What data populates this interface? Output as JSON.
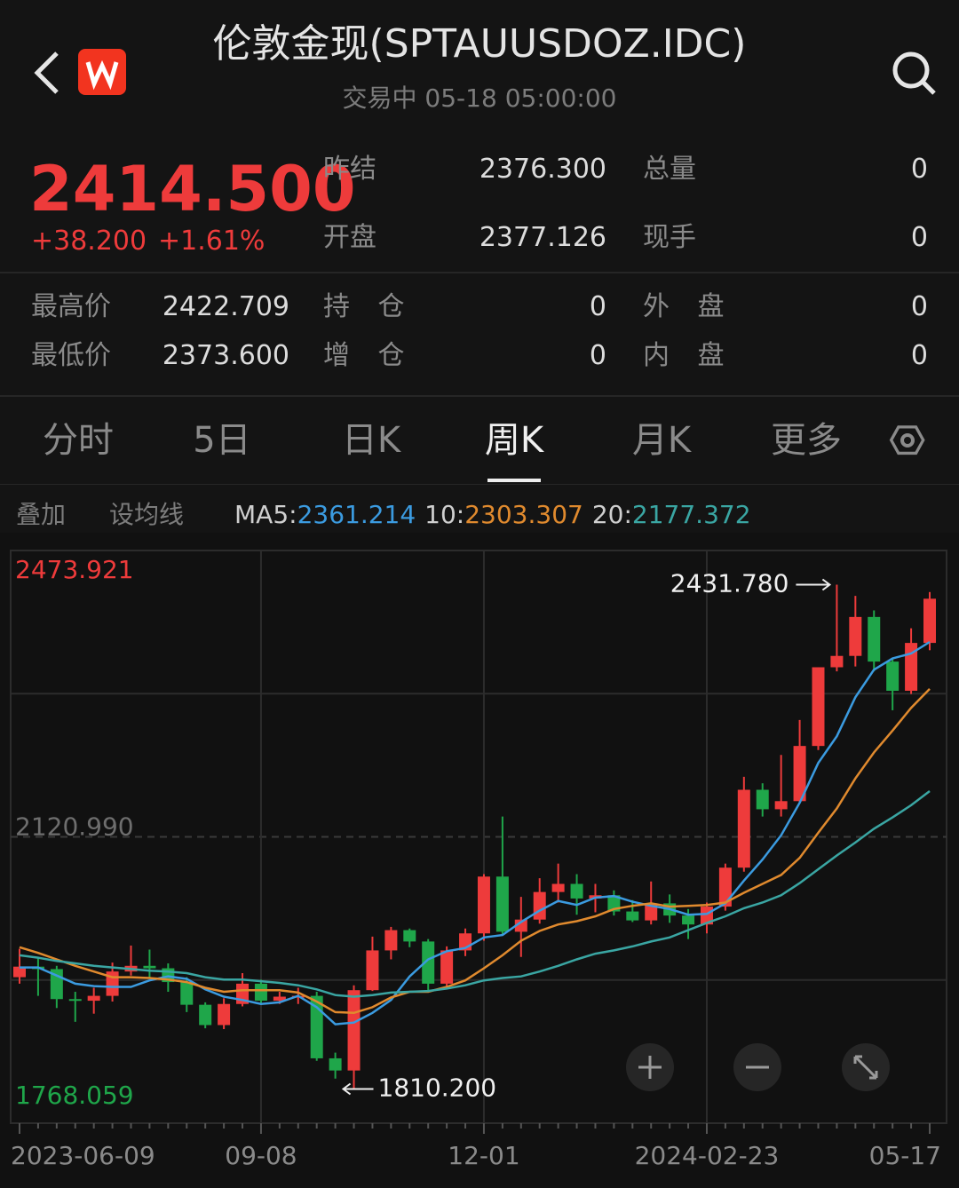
{
  "header": {
    "title": "伦敦金现(SPTAUUSDOZ.IDC)",
    "status": "交易中 05-18 05:00:00"
  },
  "quote": {
    "price": "2414.500",
    "change": "+38.200",
    "change_pct": "+1.61%",
    "fields": [
      {
        "label": "昨结",
        "value": "2376.300"
      },
      {
        "label": "总量",
        "value": "0"
      },
      {
        "label": "开盘",
        "value": "2377.126"
      },
      {
        "label": "现手",
        "value": "0"
      }
    ],
    "stats": [
      {
        "label": "最高价",
        "value": "2422.709"
      },
      {
        "label": "持 仓",
        "value": "0"
      },
      {
        "label": "外 盘",
        "value": "0"
      },
      {
        "label": "最低价",
        "value": "2373.600"
      },
      {
        "label": "增 仓",
        "value": "0"
      },
      {
        "label": "内 盘",
        "value": "0"
      }
    ]
  },
  "tabs": [
    "分时",
    "5日",
    "日K",
    "周K",
    "月K",
    "更多"
  ],
  "toolbar": [
    "叠加",
    "设均线"
  ],
  "chart_data": {
    "type": "candlestick",
    "categories": [
      "2023-06-09",
      null,
      null,
      null,
      null,
      null,
      null,
      null,
      null,
      null,
      null,
      null,
      null,
      "09-08",
      null,
      null,
      null,
      null,
      null,
      null,
      null,
      null,
      null,
      null,
      null,
      "12-01",
      null,
      null,
      null,
      null,
      null,
      null,
      null,
      null,
      null,
      null,
      null,
      "2024-02-23",
      null,
      null,
      null,
      null,
      null,
      null,
      null,
      null,
      null,
      null,
      null,
      "05-17"
    ],
    "open": [
      1948,
      1961,
      1958,
      1921,
      1919,
      1925,
      1955,
      1962,
      1959,
      1942,
      1914,
      1889,
      1915,
      1940,
      1919,
      1924,
      1925,
      1848,
      1833,
      1932,
      1981,
      2006,
      1992,
      1940,
      1981,
      2002,
      2072,
      2004,
      2019,
      2053,
      2063,
      2045,
      2049,
      2029,
      2018,
      2039,
      2024,
      2013,
      2035,
      2083,
      2179,
      2155,
      2165,
      2233,
      2330,
      2344,
      2392,
      2337,
      2301,
      2360
    ],
    "high": [
      1983,
      1971,
      1962,
      1930,
      1935,
      1966,
      1987,
      1982,
      1965,
      1948,
      1917,
      1922,
      1953,
      1945,
      1930,
      1935,
      1930,
      1855,
      1938,
      1998,
      2010,
      2008,
      1995,
      1986,
      2008,
      2075,
      2146,
      2047,
      2070,
      2088,
      2075,
      2063,
      2055,
      2043,
      2066,
      2050,
      2032,
      2040,
      2088,
      2195,
      2187,
      2222,
      2265,
      2330,
      2431.78,
      2418,
      2400,
      2340,
      2378,
      2422.709
    ],
    "low": [
      1940,
      1925,
      1910,
      1893,
      1903,
      1918,
      1950,
      1946,
      1930,
      1905,
      1885,
      1884,
      1912,
      1914,
      1915,
      1915,
      1845,
      1823,
      1810.2,
      1931,
      1970,
      1985,
      1931,
      1935,
      1974,
      1993,
      2000,
      1973,
      2014,
      2040,
      2025,
      2028,
      2024,
      2016,
      2013,
      2015,
      1995,
      2002,
      2030,
      2078,
      2146,
      2146,
      2163,
      2228,
      2325,
      2331,
      2325,
      2277,
      2297,
      2351
    ],
    "close": [
      1961,
      1958,
      1921,
      1919,
      1925,
      1955,
      1962,
      1959,
      1942,
      1914,
      1889,
      1915,
      1940,
      1919,
      1924,
      1925,
      1848,
      1833,
      1932,
      1981,
      2006,
      1992,
      1940,
      1981,
      2002,
      2072,
      2004,
      2019,
      2053,
      2063,
      2045,
      2049,
      2029,
      2018,
      2039,
      2024,
      2013,
      2035,
      2083,
      2179,
      2155,
      2165,
      2233,
      2330,
      2344,
      2392,
      2337,
      2301,
      2360,
      2414.5
    ],
    "up_color": "#ee3b3b",
    "down_color": "#1fa64a",
    "series": [
      {
        "name": "MA5:",
        "color": "#3b9be0",
        "legend_label": "2361.214",
        "values": [
          1960,
          1960,
          1950,
          1940,
          1937,
          1936,
          1936,
          1944,
          1949,
          1946,
          1933,
          1924,
          1920,
          1915,
          1917,
          1925,
          1911,
          1890,
          1892,
          1904,
          1920,
          1949,
          1970,
          1980,
          1984,
          1997,
          2000,
          2016,
          2030,
          2042,
          2037,
          2046,
          2048,
          2041,
          2036,
          2032,
          2025,
          2026,
          2039,
          2067,
          2093,
          2123,
          2163,
          2212,
          2245,
          2293,
          2327,
          2341,
          2347,
          2361.214
        ]
      },
      {
        "name": "10:",
        "color": "#e08a2e",
        "legend_label": "2303.307",
        "values": [
          1985,
          1978,
          1970,
          1962,
          1955,
          1948,
          1948,
          1947,
          1945,
          1942,
          1935,
          1930,
          1932,
          1932,
          1932,
          1929,
          1918,
          1905,
          1904,
          1911,
          1923,
          1930,
          1930,
          1936,
          1944,
          1959,
          1975,
          1993,
          2005,
          2013,
          2017,
          2023,
          2032,
          2036,
          2039,
          2035,
          2036,
          2037,
          2040,
          2052,
          2063,
          2074,
          2095,
          2126,
          2156,
          2193,
          2225,
          2252,
          2280,
          2303.307
        ]
      },
      {
        "name": "20:",
        "color": "#3aa6a3",
        "legend_label": "2177.372",
        "values": [
          1975,
          1972,
          1968,
          1965,
          1962,
          1960,
          1958,
          1956,
          1955,
          1953,
          1948,
          1945,
          1945,
          1943,
          1941,
          1938,
          1933,
          1926,
          1924,
          1926,
          1929,
          1930,
          1931,
          1934,
          1938,
          1944,
          1947,
          1949,
          1955,
          1962,
          1970,
          1977,
          1981,
          1986,
          1992,
          1997,
          2006,
          2015,
          2023,
          2033,
          2040,
          2049,
          2064,
          2081,
          2098,
          2114,
          2131,
          2145,
          2160,
          2177.372
        ]
      }
    ],
    "ylim": [
      1768.059,
      2473.921
    ],
    "yticks": [
      1768.059,
      {
        "value": 2120.99,
        "label": "2120.990"
      },
      2473.921
    ],
    "annotations": {
      "high_label": "2431.780",
      "low_label": "1810.200"
    }
  }
}
